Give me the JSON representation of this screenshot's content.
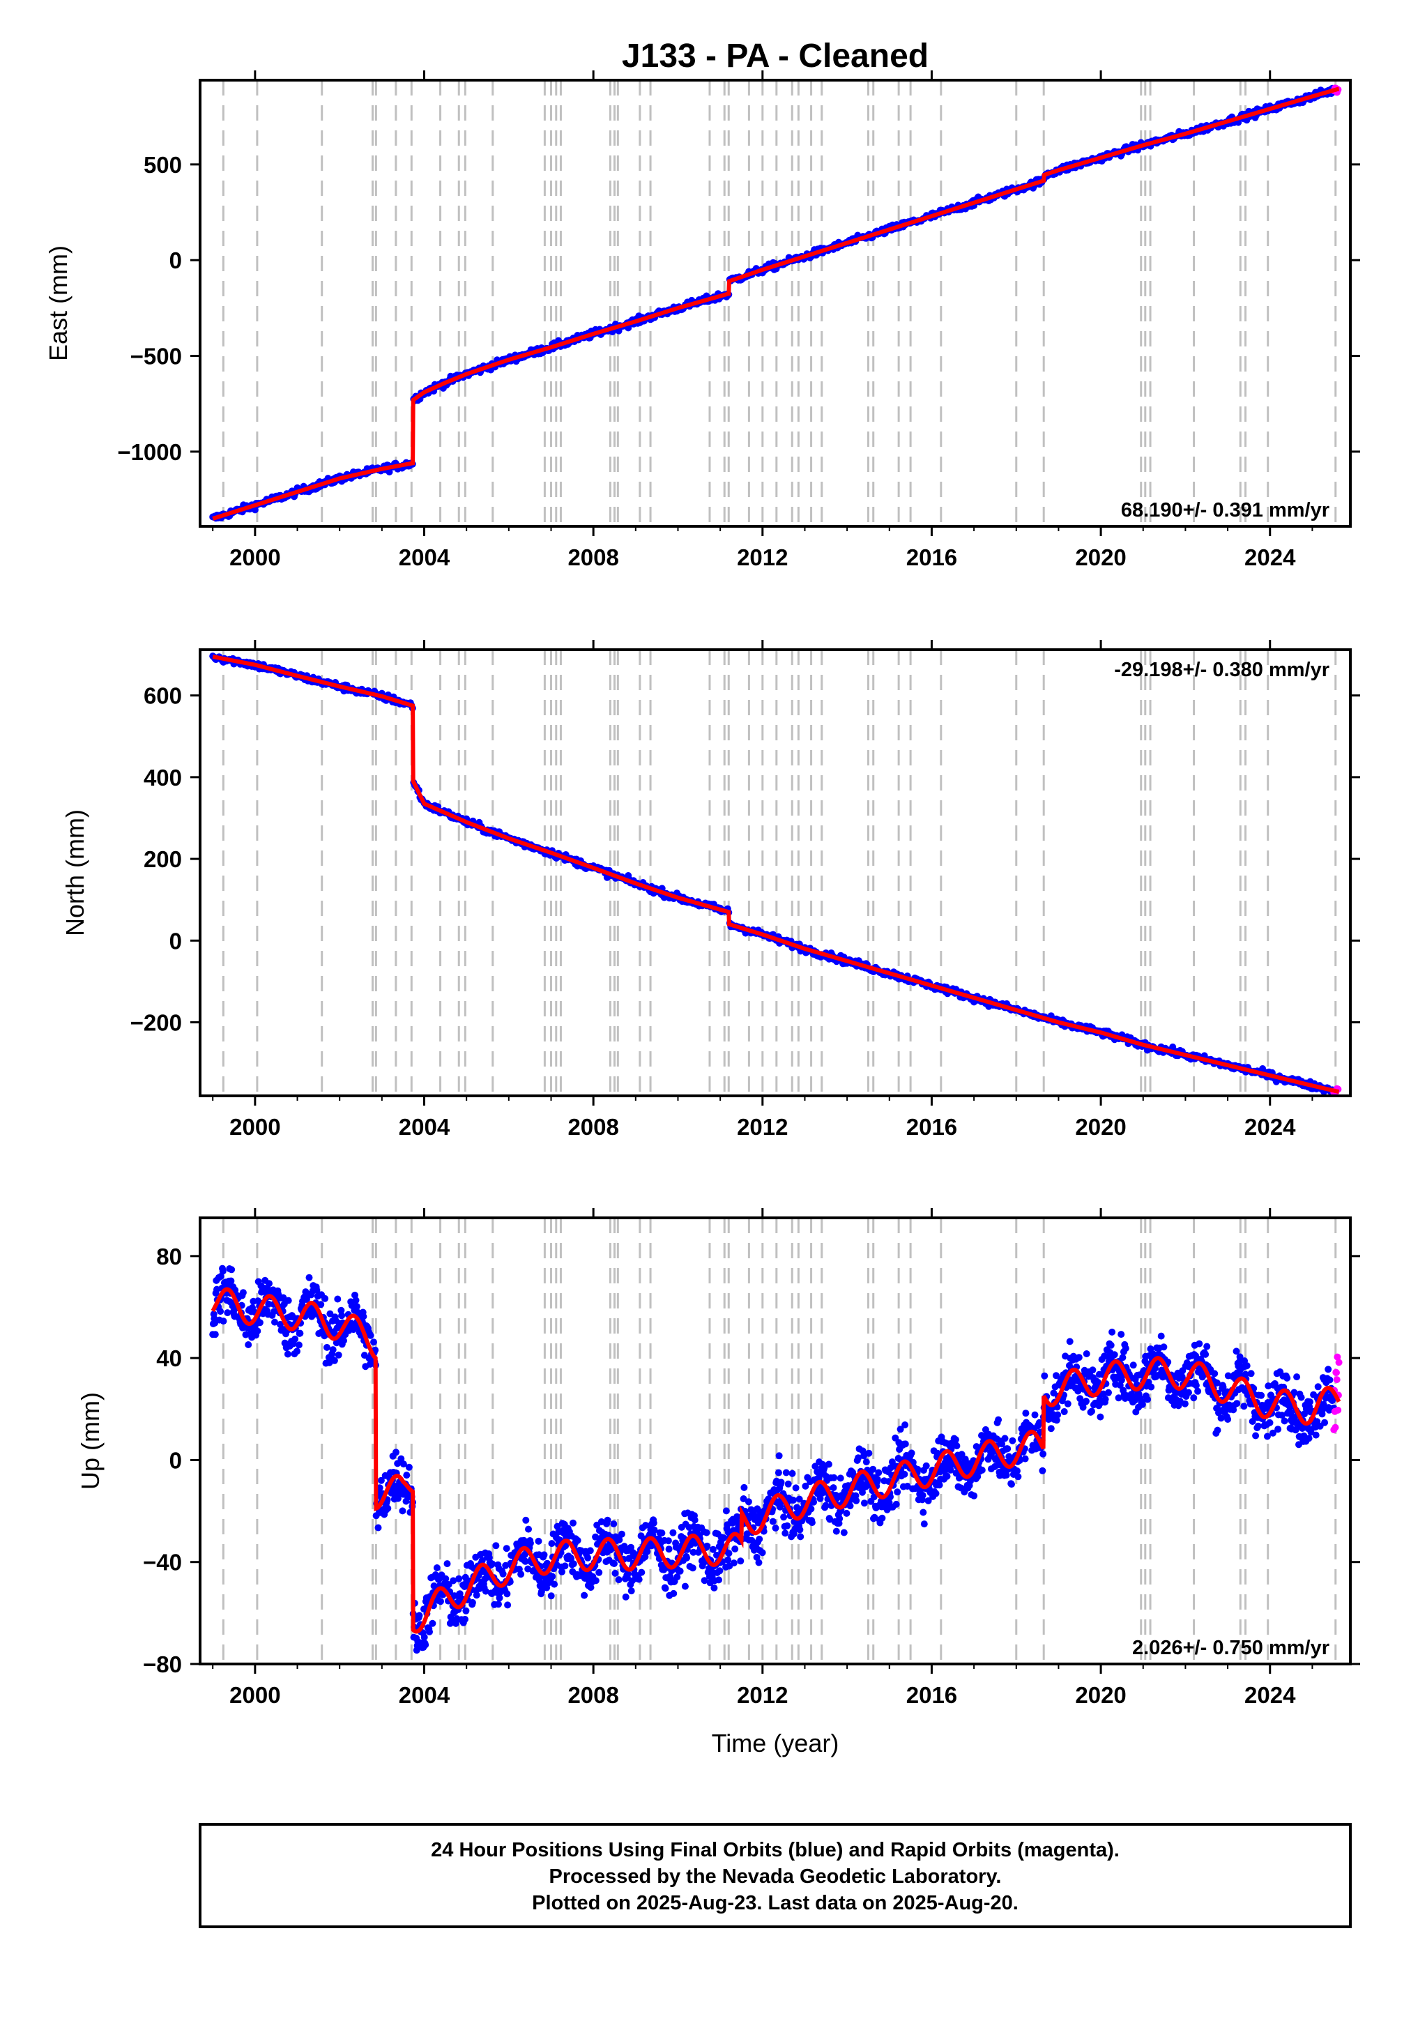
{
  "chart_data": {
    "type": "scatter",
    "title": "J133  - PA - Cleaned",
    "xlabel": "Time (year)",
    "xlim": [
      1998.7,
      2025.9
    ],
    "xticks": [
      2000,
      2004,
      2008,
      2012,
      2016,
      2020,
      2024
    ],
    "xtick_labels": [
      "2000",
      "2004",
      "2008",
      "2012",
      "2016",
      "2020",
      "2024"
    ],
    "grid": "vertical dashed lines at equipment/event epochs",
    "event_lines": [
      1999.25,
      2000.05,
      2001.58,
      2002.78,
      2002.86,
      2003.33,
      2003.7,
      2004.38,
      2004.82,
      2004.97,
      2005.62,
      2006.85,
      2007.0,
      2007.12,
      2007.23,
      2008.4,
      2008.5,
      2008.58,
      2009.1,
      2009.35,
      2010.75,
      2011.1,
      2011.2,
      2011.68,
      2012.0,
      2012.33,
      2012.7,
      2012.85,
      2013.15,
      2013.4,
      2014.5,
      2014.62,
      2015.22,
      2015.5,
      2016.22,
      2018.0,
      2018.65,
      2020.95,
      2021.05,
      2021.17,
      2022.2,
      2023.3,
      2023.42,
      2023.95,
      2025.55
    ],
    "colors": {
      "final_orbits": "#0000ff",
      "rapid_orbits": "#ff00ff",
      "model": "#ff0000",
      "event_lines": "#c0c0c0"
    },
    "panels": [
      {
        "name": "east",
        "ylabel": "East (mm)",
        "ylim": [
          -1390,
          940
        ],
        "yticks": [
          -1000,
          -500,
          0,
          500
        ],
        "ytick_labels": [
          "−1000",
          "−500",
          "0",
          "500"
        ],
        "rate_label": "68.190+/- 0.391 mm/yr",
        "rate_position": "bottom-right",
        "series": [
          {
            "type": "line",
            "x": [
              1999.0,
              2000.0,
              2001.0,
              2002.0,
              2003.0,
              2003.73,
              2003.74,
              2004.0,
              2004.5,
              2005.0,
              2006.0,
              2007.0,
              2008.0,
              2009.0,
              2010.0,
              2011.2,
              2011.21,
              2012.0,
              2013.0,
              2014.0,
              2015.0,
              2016.0,
              2017.0,
              2018.0,
              2018.65,
              2018.66,
              2019.0,
              2020.0,
              2021.0,
              2022.0,
              2023.0,
              2024.0,
              2025.0,
              2025.63
            ],
            "y": [
              -1350,
              -1280,
              -1210,
              -1140,
              -1090,
              -1060,
              -730,
              -690,
              -640,
              -595,
              -520,
              -455,
              -385,
              -320,
              -250,
              -175,
              -110,
              -50,
              20,
              90,
              160,
              230,
              300,
              370,
              415,
              445,
              470,
              535,
              600,
              660,
              725,
              790,
              855,
              895
            ]
          }
        ]
      },
      {
        "name": "north",
        "ylabel": "North (mm)",
        "ylim": [
          -380,
          712
        ],
        "yticks": [
          -200,
          0,
          200,
          400,
          600
        ],
        "ytick_labels": [
          "−200",
          "0",
          "200",
          "400",
          "600"
        ],
        "rate_label": "-29.198+/- 0.380 mm/yr",
        "rate_position": "top-right",
        "series": [
          {
            "type": "line",
            "x": [
              1999.0,
              2000.0,
              2001.0,
              2002.0,
              2003.0,
              2003.73,
              2003.74,
              2004.0,
              2005.0,
              2006.0,
              2007.0,
              2008.0,
              2009.0,
              2010.0,
              2011.2,
              2011.21,
              2012.0,
              2013.0,
              2014.0,
              2015.0,
              2016.0,
              2017.0,
              2018.0,
              2019.0,
              2020.0,
              2021.0,
              2022.0,
              2023.0,
              2024.0,
              2025.0,
              2025.63
            ],
            "y": [
              695,
              675,
              648,
              622,
              598,
              575,
              390,
              335,
              290,
              250,
              215,
              178,
              140,
              105,
              70,
              40,
              15,
              -20,
              -50,
              -80,
              -110,
              -140,
              -170,
              -200,
              -225,
              -255,
              -280,
              -305,
              -330,
              -355,
              -370
            ]
          }
        ]
      },
      {
        "name": "up",
        "ylabel": "Up (mm)",
        "ylim": [
          -80,
          95
        ],
        "yticks": [
          -80,
          -40,
          0,
          40,
          80
        ],
        "ytick_labels": [
          "−80",
          "−40",
          "0",
          "40",
          "80"
        ],
        "rate_label": "2.026+/- 0.750 mm/yr",
        "rate_position": "bottom-right",
        "series": [
          {
            "type": "line",
            "seasonal_amplitude": 6,
            "x": [
              1999.0,
              2000.0,
              2001.0,
              2002.0,
              2002.7,
              2002.85,
              2002.86,
              2003.5,
              2003.73,
              2003.74,
              2004.0,
              2004.5,
              2005.0,
              2006.0,
              2007.0,
              2008.0,
              2009.0,
              2010.0,
              2011.0,
              2011.5,
              2011.51,
              2012.0,
              2013.0,
              2014.0,
              2015.0,
              2016.0,
              2017.0,
              2018.0,
              2018.64,
              2018.65,
              2019.0,
              2020.0,
              2021.0,
              2022.0,
              2023.0,
              2024.0,
              2025.0,
              2025.63
            ],
            "y": [
              62,
              59,
              57,
              53,
              48,
              46,
              -13,
              -12,
              -8,
              -62,
              -60,
              -55,
              -50,
              -42,
              -38,
              -37,
              -37,
              -36,
              -35,
              -35,
              -24,
              -22,
              -16,
              -12,
              -8,
              -4,
              0,
              4,
              6,
              27,
              28,
              32,
              34,
              34,
              28,
              22,
              20,
              24
            ]
          }
        ]
      }
    ],
    "footer": [
      "24 Hour Positions Using Final Orbits (blue) and Rapid Orbits (magenta).",
      "Processed by the Nevada Geodetic Laboratory.",
      "Plotted on 2025-Aug-23. Last data on 2025-Aug-20."
    ]
  }
}
